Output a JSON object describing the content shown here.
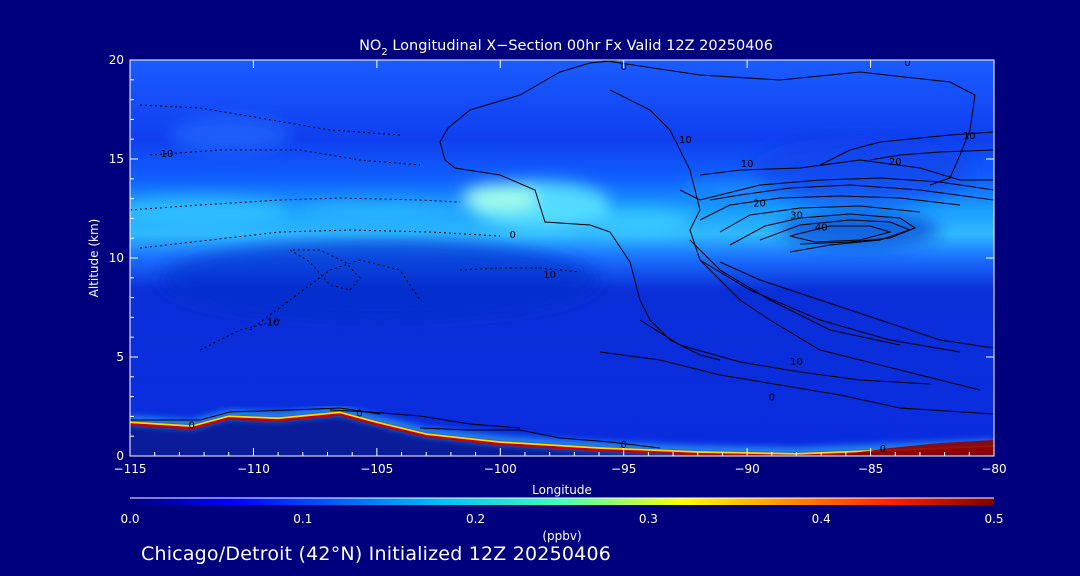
{
  "chart_data": {
    "type": "heatmap",
    "title_main": "NO",
    "title_sub": "2",
    "title_rest": " Longitudinal X−Section 00hr  Fx Valid 12Z 20250406",
    "xlabel": "Longitude",
    "ylabel": "Altitude (km)",
    "xlim": [
      -115,
      -80
    ],
    "ylim": [
      0,
      20
    ],
    "x_ticks": [
      -115,
      -110,
      -105,
      -100,
      -95,
      -90,
      -85,
      -80
    ],
    "x_tick_labels": [
      "−115",
      "−110",
      "−105",
      "−100",
      "−95",
      "−90",
      "−85",
      "−80"
    ],
    "y_ticks": [
      0,
      5,
      10,
      15,
      20
    ],
    "y_tick_labels": [
      "0",
      "5",
      "10",
      "15",
      "20"
    ],
    "colorbar": {
      "label": "(ppbv)",
      "min": 0.0,
      "max": 0.5,
      "ticks": [
        0.0,
        0.1,
        0.2,
        0.3,
        0.4,
        0.5
      ],
      "tick_labels": [
        "0.0",
        "0.1",
        "0.2",
        "0.3",
        "0.4",
        "0.5"
      ]
    },
    "terrain_km": [
      {
        "lon": -115,
        "alt": 1.8
      },
      {
        "lon": -112.5,
        "alt": 1.6
      },
      {
        "lon": -111,
        "alt": 2.1
      },
      {
        "lon": -109,
        "alt": 2.0
      },
      {
        "lon": -106.5,
        "alt": 2.3
      },
      {
        "lon": -105,
        "alt": 1.8
      },
      {
        "lon": -103,
        "alt": 1.2
      },
      {
        "lon": -100,
        "alt": 0.8
      },
      {
        "lon": -96,
        "alt": 0.5
      },
      {
        "lon": -92,
        "alt": 0.3
      },
      {
        "lon": -88,
        "alt": 0.2
      },
      {
        "lon": -84,
        "alt": 0.4
      },
      {
        "lon": -80,
        "alt": 0.6
      }
    ],
    "no2_layer": {
      "alt_km": 12,
      "max_ppbv": 0.22,
      "max_lon": -100
    },
    "contour_labels": [
      {
        "text": "0",
        "lon": -95,
        "alt": 19.7
      },
      {
        "text": "0",
        "lon": -83.5,
        "alt": 19.9
      },
      {
        "text": "10",
        "lon": -113.5,
        "alt": 15.3
      },
      {
        "text": "10",
        "lon": -92.5,
        "alt": 16.0
      },
      {
        "text": "10",
        "lon": -81,
        "alt": 16.2
      },
      {
        "text": "10",
        "lon": -90,
        "alt": 14.8
      },
      {
        "text": "20",
        "lon": -84,
        "alt": 14.9
      },
      {
        "text": "20",
        "lon": -89.5,
        "alt": 12.8
      },
      {
        "text": "30",
        "lon": -88,
        "alt": 12.2
      },
      {
        "text": "40",
        "lon": -87,
        "alt": 11.6
      },
      {
        "text": "0",
        "lon": -99.5,
        "alt": 11.2
      },
      {
        "text": "10",
        "lon": -98,
        "alt": 9.2
      },
      {
        "text": "10",
        "lon": -109.2,
        "alt": 6.8
      },
      {
        "text": "10",
        "lon": -88,
        "alt": 4.8
      },
      {
        "text": "0",
        "lon": -89,
        "alt": 3.0
      },
      {
        "text": "0",
        "lon": -112.5,
        "alt": 1.6
      },
      {
        "text": "0",
        "lon": -105.7,
        "alt": 2.2
      },
      {
        "text": "0",
        "lon": -95,
        "alt": 0.6
      },
      {
        "text": "0",
        "lon": -84.5,
        "alt": 0.4
      }
    ]
  },
  "footer": "Chicago/Detroit (42°N) Initialized 12Z 20250406"
}
